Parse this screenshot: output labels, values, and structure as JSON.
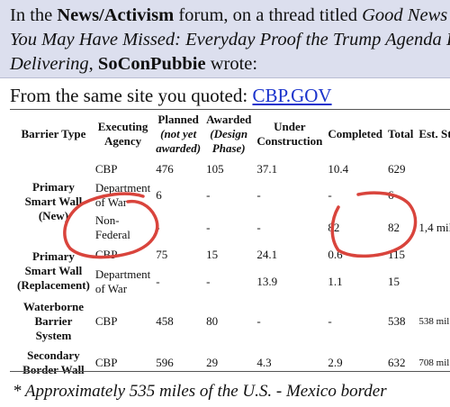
{
  "quote": {
    "prefix": "In the ",
    "forum": "News/Activism",
    "mid1": " forum, on a thread titled ",
    "thread_line1": "Good News",
    "thread_line2": "You May Have Missed: Everyday Proof the Trump Agenda Is",
    "thread_line3": "Delivering",
    "mid2": ", ",
    "author": "SoConPubbie",
    "suffix": " wrote:"
  },
  "source": {
    "text": "From the same site you quoted: ",
    "link": "CBP.GOV"
  },
  "table": {
    "headers": {
      "barrier_type": "Barrier Type",
      "executing_agency": "Executing Agency",
      "planned": "Planned",
      "planned_sub": "(not yet awarded)",
      "awarded": "Awarded",
      "awarded_sub": "(Design Phase)",
      "under_construction": "Under Construction",
      "completed": "Completed",
      "total": "Total",
      "est_status": "Est. Status"
    },
    "rows": [
      {
        "type": "",
        "agency": "CBP",
        "planned": "476",
        "awarded": "105",
        "under": "37.1",
        "completed": "10.4",
        "total": "629",
        "est": ""
      },
      {
        "type": "Primary Smart Wall (New)",
        "agency": "Department of War",
        "planned": "6",
        "awarded": "-",
        "under": "-",
        "completed": "-",
        "total": "6",
        "est": ""
      },
      {
        "type": "",
        "agency": "Non-Federal",
        "planned": "-",
        "awarded": "-",
        "under": "-",
        "completed": "82",
        "total": "82",
        "est": "1,4 mil"
      },
      {
        "type": "Primary Smart Wall (Replacement)",
        "agency": "CBP",
        "planned": "75",
        "awarded": "15",
        "under": "24.1",
        "completed": "0.6",
        "total": "115",
        "est": ""
      },
      {
        "type": "",
        "agency": "Department of War",
        "planned": "-",
        "awarded": "-",
        "under": "13.9",
        "completed": "1.1",
        "total": "15",
        "est": ""
      },
      {
        "type": "Waterborne Barrier System",
        "agency": "CBP",
        "planned": "458",
        "awarded": "80",
        "under": "-",
        "completed": "-",
        "total": "538",
        "est": "538 mil"
      },
      {
        "type": "Secondary Border Wall",
        "agency": "CBP",
        "planned": "596",
        "awarded": "29",
        "under": "4.3",
        "completed": "2.9",
        "total": "632",
        "est": "708 mil"
      }
    ]
  },
  "footnote": "* Approximately 535 miles of the U.S. - Mexico border",
  "annotations": {
    "color": "#d9443c"
  }
}
